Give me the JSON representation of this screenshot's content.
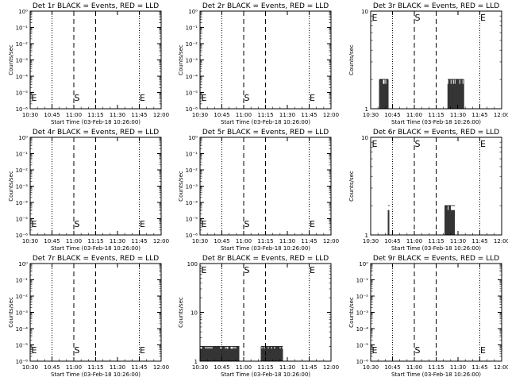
{
  "figure": {
    "xlabel": "Start Time (03-Feb-18 10:26:00)",
    "ylabel": "Counts/sec",
    "x_ticks": [
      "10:30",
      "10:45",
      "11:00",
      "11:15",
      "11:30",
      "11:45",
      "12:00"
    ],
    "x_range_minutes_since_1030": [
      0,
      90
    ],
    "dotted_lines_at": [
      "10:45",
      "11:45",
      "12:00"
    ],
    "dashed_lines_at": [
      "11:00",
      "11:15"
    ],
    "letter_markers": [
      {
        "text": "E",
        "at": "10:30"
      },
      {
        "text": "S",
        "at": "11:00"
      },
      {
        "text": "E",
        "at": "11:45"
      }
    ]
  },
  "chart_data": [
    {
      "type": "line",
      "title": "Det 1r BLACK = Events, RED = LLD",
      "yscale": "log",
      "y_tick_labels": [
        "10⁰",
        "10⁻¹",
        "10⁻²",
        "10⁻³",
        "10⁻⁴",
        "10⁻⁵",
        "10⁻⁶"
      ],
      "series": []
    },
    {
      "type": "line",
      "title": "Det 2r BLACK = Events, RED = LLD",
      "yscale": "log",
      "y_tick_labels": [
        "10⁰",
        "10⁻¹",
        "10⁻²",
        "10⁻³",
        "10⁻⁴",
        "10⁻⁵",
        "10⁻⁶"
      ],
      "series": []
    },
    {
      "type": "line",
      "title": "Det 3r BLACK = Events, RED = LLD",
      "yscale": "log",
      "y_tick_labels": [
        "10",
        "1"
      ],
      "ylim": [
        1,
        10
      ],
      "series": [
        {
          "color": "#000000",
          "x_ranges": [
            [
              "10:36",
              "10:42"
            ],
            [
              "11:23",
              "11:34"
            ]
          ],
          "y": 2
        }
      ]
    },
    {
      "type": "line",
      "title": "Det 4r BLACK = Events, RED = LLD",
      "yscale": "log",
      "y_tick_labels": [
        "10⁰",
        "10⁻¹",
        "10⁻²",
        "10⁻³",
        "10⁻⁴",
        "10⁻⁵",
        "10⁻⁶"
      ],
      "series": []
    },
    {
      "type": "line",
      "title": "Det 5r BLACK = Events, RED = LLD",
      "yscale": "log",
      "y_tick_labels": [
        "10⁰",
        "10⁻¹",
        "10⁻²",
        "10⁻³",
        "10⁻⁴",
        "10⁻⁵",
        "10⁻⁶"
      ],
      "series": []
    },
    {
      "type": "line",
      "title": "Det 6r BLACK = Events, RED = LLD",
      "yscale": "log",
      "y_tick_labels": [
        "10",
        "1"
      ],
      "ylim": [
        1,
        10
      ],
      "series": [
        {
          "color": "#000000",
          "x_ranges": [
            [
              "10:42",
              "10:43"
            ],
            [
              "11:21",
              "11:28"
            ]
          ],
          "y": 2
        }
      ]
    },
    {
      "type": "line",
      "title": "Det 7r BLACK = Events, RED = LLD",
      "yscale": "log",
      "y_tick_labels": [
        "10⁰",
        "10⁻¹",
        "10⁻²",
        "10⁻³",
        "10⁻⁴",
        "10⁻⁵",
        "10⁻⁶"
      ],
      "series": []
    },
    {
      "type": "line",
      "title": "Det 8r BLACK = Events, RED = LLD",
      "yscale": "log",
      "y_tick_labels": [
        "100",
        "10",
        "1"
      ],
      "ylim": [
        1,
        100
      ],
      "series": [
        {
          "color": "#000000",
          "x_ranges": [
            [
              "10:30",
              "10:57"
            ],
            [
              "11:12",
              "11:27"
            ]
          ],
          "y": 2
        }
      ]
    },
    {
      "type": "line",
      "title": "Det 9r BLACK = Events, RED = LLD",
      "yscale": "log",
      "y_tick_labels": [
        "10⁰",
        "10⁻¹",
        "10⁻²",
        "10⁻³",
        "10⁻⁴",
        "10⁻⁵",
        "10⁻⁶"
      ],
      "series": []
    }
  ]
}
